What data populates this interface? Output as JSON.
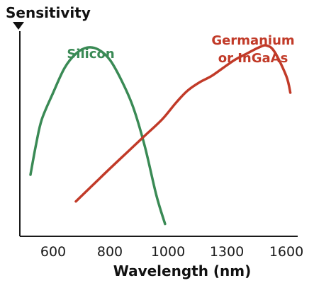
{
  "chart_data": {
    "type": "line",
    "title": "",
    "xlabel": "Wavelength (nm)",
    "ylabel": "Sensitivity",
    "xlim": [
      480,
      1640
    ],
    "ylim": [
      0,
      100
    ],
    "x_ticks": [
      "600",
      "800",
      "1000",
      "1300",
      "1600"
    ],
    "x_tick_values": [
      600,
      800,
      1000,
      1300,
      1600
    ],
    "grid": false,
    "legend": "none",
    "series": [
      {
        "name": "Silicon",
        "color": "#3a8a55",
        "x": [
          520,
          540,
          560,
          600,
          640,
          680,
          720,
          760,
          800,
          840,
          880,
          920,
          960,
          990
        ],
        "y": [
          30,
          45,
          57,
          70,
          82,
          89,
          92,
          91,
          86,
          76,
          63,
          44,
          20,
          6
        ]
      },
      {
        "name": "Germanium or InGaAs",
        "label_lines": [
          "Germanium",
          "or InGaAs"
        ],
        "color": "#c13a28",
        "x": [
          680,
          740,
          800,
          860,
          920,
          980,
          1040,
          1100,
          1160,
          1220,
          1280,
          1340,
          1400,
          1460,
          1500,
          1540,
          1600,
          1620
        ],
        "y": [
          17,
          25,
          33,
          41,
          49,
          57,
          65,
          71,
          75,
          78,
          82,
          86,
          89,
          92,
          93,
          90,
          78,
          70
        ]
      }
    ]
  }
}
